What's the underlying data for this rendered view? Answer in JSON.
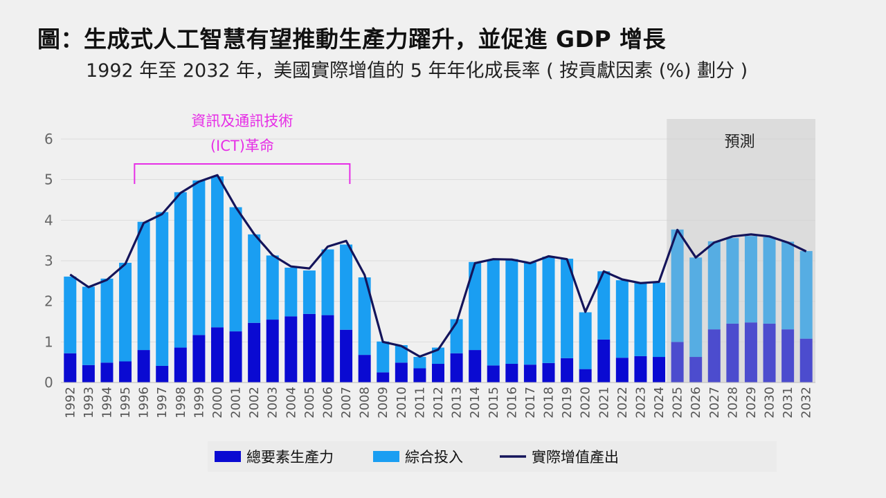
{
  "header": {
    "title": "圖：生成式人工智慧有望推動生產力躍升，並促進 GDP 增長",
    "subtitle": "1992 年至 2032 年，美國實際增值的 5 年年化成長率 ( 按貢獻因素 (%) 劃分 )"
  },
  "colors": {
    "tfp": "#0a0ad2",
    "input": "#1a9ef2",
    "output_line": "#14145a",
    "annotation": "#e62ee6",
    "forecast_band": "#c8c8c8"
  },
  "chart_data": {
    "type": "bar",
    "stacked": true,
    "categories": [
      "1992",
      "1993",
      "1994",
      "1995",
      "1996",
      "1997",
      "1998",
      "1999",
      "2000",
      "2001",
      "2002",
      "2003",
      "2004",
      "2005",
      "2006",
      "2007",
      "2008",
      "2009",
      "2010",
      "2011",
      "2012",
      "2013",
      "2014",
      "2015",
      "2016",
      "2017",
      "2018",
      "2019",
      "2020",
      "2021",
      "2022",
      "2023",
      "2024",
      "2025",
      "2026",
      "2027",
      "2028",
      "2029",
      "2030",
      "2031",
      "2032"
    ],
    "series": [
      {
        "name": "總要素生產力",
        "type": "bar",
        "values": [
          0.72,
          0.43,
          0.49,
          0.52,
          0.8,
          0.41,
          0.86,
          1.17,
          1.36,
          1.26,
          1.47,
          1.55,
          1.63,
          1.69,
          1.66,
          1.3,
          0.68,
          0.25,
          0.49,
          0.35,
          0.46,
          0.72,
          0.8,
          0.42,
          0.46,
          0.44,
          0.48,
          0.6,
          0.33,
          1.06,
          0.61,
          0.65,
          0.63,
          1.0,
          0.63,
          1.31,
          1.45,
          1.48,
          1.45,
          1.31,
          1.08
        ]
      },
      {
        "name": "綜合投入",
        "type": "bar",
        "values": [
          1.89,
          1.93,
          2.07,
          2.43,
          3.16,
          3.79,
          3.83,
          3.81,
          3.72,
          3.06,
          2.18,
          1.58,
          1.2,
          1.07,
          1.62,
          2.1,
          1.91,
          0.76,
          0.43,
          0.28,
          0.4,
          0.84,
          2.17,
          2.6,
          2.58,
          2.52,
          2.62,
          2.45,
          1.4,
          1.68,
          1.91,
          1.8,
          1.83,
          2.77,
          2.45,
          2.17,
          2.11,
          2.13,
          2.13,
          2.16,
          2.16
        ]
      },
      {
        "name": "實際增值產出",
        "type": "line",
        "values": [
          2.66,
          2.35,
          2.53,
          2.92,
          3.93,
          4.15,
          4.67,
          4.95,
          5.11,
          4.32,
          3.66,
          3.14,
          2.86,
          2.81,
          3.35,
          3.49,
          2.65,
          1.0,
          0.9,
          0.64,
          0.81,
          1.48,
          2.94,
          3.04,
          3.03,
          2.94,
          3.11,
          3.04,
          1.74,
          2.74,
          2.54,
          2.45,
          2.48,
          3.76,
          3.08,
          3.45,
          3.6,
          3.65,
          3.6,
          3.45,
          3.23
        ]
      }
    ],
    "ylim": [
      0,
      6
    ],
    "yticks": [
      "0",
      "1",
      "2",
      "3",
      "4",
      "5",
      "6"
    ],
    "xlabel": "",
    "ylabel": "",
    "grid": true,
    "legend": {
      "position": "bottom-center",
      "entries": [
        "總要素生產力",
        "綜合投入",
        "實際增值產出"
      ]
    },
    "annotations": {
      "ict_line1": "資訊及通訊技術",
      "ict_line2": "(ICT)革命",
      "ict_range": [
        "1996",
        "2007"
      ],
      "forecast_label": "預測",
      "forecast_start": "2025"
    }
  }
}
